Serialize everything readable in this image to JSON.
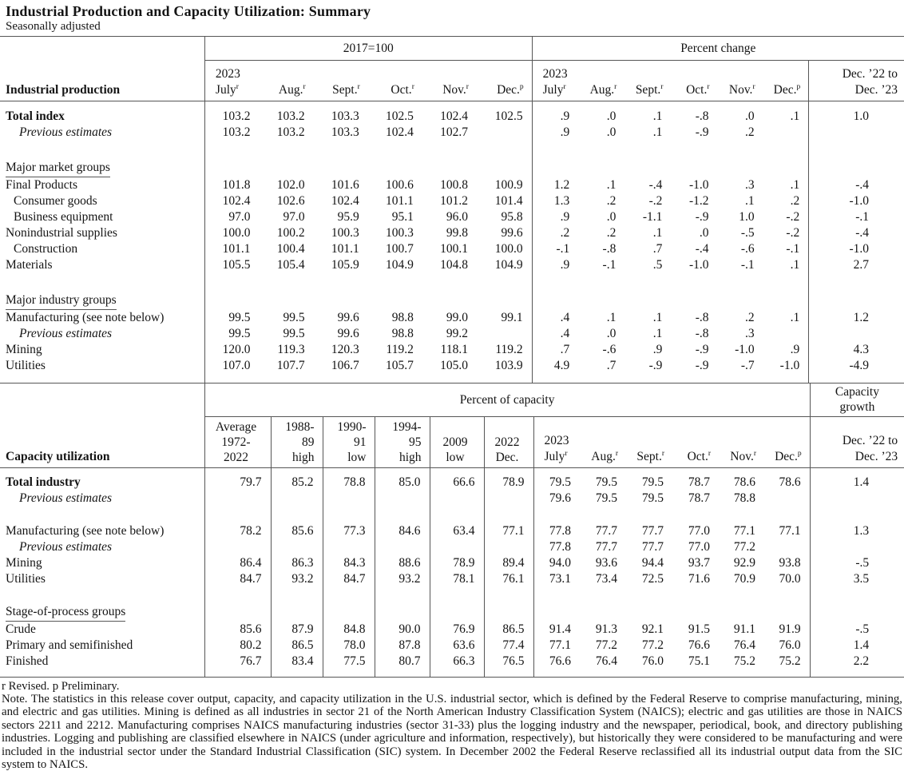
{
  "page": {
    "title": "Industrial Production and Capacity Utilization: Summary",
    "subtitle": "Seasonally adjusted"
  },
  "common": {
    "year_label": "2023",
    "months": [
      {
        "text": "July",
        "sup": "r"
      },
      {
        "text": "Aug.",
        "sup": "r"
      },
      {
        "text": "Sept.",
        "sup": "r"
      },
      {
        "text": "Oct.",
        "sup": "r"
      },
      {
        "text": "Nov.",
        "sup": "r"
      },
      {
        "text": "Dec.",
        "sup": "p"
      }
    ],
    "change_line1": "Dec. ’22 to",
    "change_line2": "Dec. ’23"
  },
  "table1": {
    "row_header": "Industrial production",
    "group1_header": "2017=100",
    "group2_header": "Percent change",
    "rows": [
      {
        "spacer": 9
      },
      {
        "label": "Total index",
        "style": "b",
        "cells": [
          "103.2",
          "103.2",
          "103.3",
          "102.5",
          "102.4",
          "102.5",
          ".9",
          ".0",
          ".1",
          "-.8",
          ".0",
          ".1",
          "1.0"
        ]
      },
      {
        "label": "Previous estimates",
        "style": "prev",
        "cells": [
          "103.2",
          "103.2",
          "103.3",
          "102.4",
          "102.7",
          "",
          ".9",
          ".0",
          ".1",
          "-.9",
          ".2",
          "",
          ""
        ]
      },
      {
        "spacer": 24
      },
      {
        "label": "Major market groups",
        "style": "group",
        "cells": []
      },
      {
        "label": "Final Products",
        "style": "",
        "cells": [
          "101.8",
          "102.0",
          "101.6",
          "100.6",
          "100.8",
          "100.9",
          "1.2",
          ".1",
          "-.4",
          "-1.0",
          ".3",
          ".1",
          "-.4"
        ]
      },
      {
        "label": "Consumer goods",
        "style": "ind",
        "cells": [
          "102.4",
          "102.6",
          "102.4",
          "101.1",
          "101.2",
          "101.4",
          "1.3",
          ".2",
          "-.2",
          "-1.2",
          ".1",
          ".2",
          "-1.0"
        ]
      },
      {
        "label": "Business equipment",
        "style": "ind",
        "cells": [
          "97.0",
          "97.0",
          "95.9",
          "95.1",
          "96.0",
          "95.8",
          ".9",
          ".0",
          "-1.1",
          "-.9",
          "1.0",
          "-.2",
          "-.1"
        ]
      },
      {
        "label": "Nonindustrial supplies",
        "style": "",
        "cells": [
          "100.0",
          "100.2",
          "100.3",
          "100.3",
          "99.8",
          "99.6",
          ".2",
          ".2",
          ".1",
          ".0",
          "-.5",
          "-.2",
          "-.4"
        ]
      },
      {
        "label": "Construction",
        "style": "ind",
        "cells": [
          "101.1",
          "100.4",
          "101.1",
          "100.7",
          "100.1",
          "100.0",
          "-.1",
          "-.8",
          ".7",
          "-.4",
          "-.6",
          "-.1",
          "-1.0"
        ]
      },
      {
        "label": "Materials",
        "style": "",
        "cells": [
          "105.5",
          "105.4",
          "105.9",
          "104.9",
          "104.8",
          "104.9",
          ".9",
          "-.1",
          ".5",
          "-1.0",
          "-.1",
          ".1",
          "2.7"
        ]
      },
      {
        "spacer": 24
      },
      {
        "label": "Major industry groups",
        "style": "group",
        "cells": []
      },
      {
        "label": "Manufacturing (see note below)",
        "style": "",
        "cells": [
          "99.5",
          "99.5",
          "99.6",
          "98.8",
          "99.0",
          "99.1",
          ".4",
          ".1",
          ".1",
          "-.8",
          ".2",
          ".1",
          "1.2"
        ]
      },
      {
        "label": "Previous estimates",
        "style": "prev",
        "cells": [
          "99.5",
          "99.5",
          "99.6",
          "98.8",
          "99.2",
          "",
          ".4",
          ".0",
          ".1",
          "-.8",
          ".3",
          "",
          ""
        ]
      },
      {
        "label": "Mining",
        "style": "",
        "cells": [
          "120.0",
          "119.3",
          "120.3",
          "119.2",
          "118.1",
          "119.2",
          ".7",
          "-.6",
          ".9",
          "-.9",
          "-1.0",
          ".9",
          "4.3"
        ]
      },
      {
        "label": "Utilities",
        "style": "",
        "cells": [
          "107.0",
          "107.7",
          "106.7",
          "105.7",
          "105.0",
          "103.9",
          "4.9",
          ".7",
          "-.9",
          "-.9",
          "-.7",
          "-1.0",
          "-4.9"
        ]
      },
      {
        "spacer": 12
      }
    ]
  },
  "table2": {
    "row_header": "Capacity utilization",
    "group_header": "Percent of capacity",
    "growth_line1": "Capacity",
    "growth_line2": "growth",
    "hist_cols": [
      [
        "Average",
        "1972-",
        "2022"
      ],
      [
        "1988-",
        "89",
        "high"
      ],
      [
        "1990-",
        "91",
        "low"
      ],
      [
        "1994-",
        "95",
        "high"
      ],
      [
        "2009",
        "low"
      ],
      [
        "2022",
        "Dec."
      ]
    ],
    "rows": [
      {
        "spacer": 9
      },
      {
        "label": "Total industry",
        "style": "b",
        "cells": [
          "79.7",
          "85.2",
          "78.8",
          "85.0",
          "66.6",
          "78.9",
          "79.5",
          "79.5",
          "79.5",
          "78.7",
          "78.6",
          "78.6",
          "1.4"
        ]
      },
      {
        "label": "Previous estimates",
        "style": "prev",
        "cells": [
          "",
          "",
          "",
          "",
          "",
          "",
          "79.6",
          "79.5",
          "79.5",
          "78.7",
          "78.8",
          "",
          ""
        ]
      },
      {
        "spacer": 21
      },
      {
        "label": "Manufacturing (see note below)",
        "style": "",
        "cells": [
          "78.2",
          "85.6",
          "77.3",
          "84.6",
          "63.4",
          "77.1",
          "77.8",
          "77.7",
          "77.7",
          "77.0",
          "77.1",
          "77.1",
          "1.3"
        ]
      },
      {
        "label": "Previous estimates",
        "style": "prev",
        "cells": [
          "",
          "",
          "",
          "",
          "",
          "",
          "77.8",
          "77.7",
          "77.7",
          "77.0",
          "77.2",
          "",
          ""
        ]
      },
      {
        "label": "Mining",
        "style": "",
        "cells": [
          "86.4",
          "86.3",
          "84.3",
          "88.6",
          "78.9",
          "89.4",
          "94.0",
          "93.6",
          "94.4",
          "93.7",
          "92.9",
          "93.8",
          "-.5"
        ]
      },
      {
        "label": "Utilities",
        "style": "",
        "cells": [
          "84.7",
          "93.2",
          "84.7",
          "93.2",
          "78.1",
          "76.1",
          "73.1",
          "73.4",
          "72.5",
          "71.6",
          "70.9",
          "70.0",
          "3.5"
        ]
      },
      {
        "spacer": 21
      },
      {
        "label": "Stage-of-process groups",
        "style": "group",
        "cells": []
      },
      {
        "label": "Crude",
        "style": "",
        "cells": [
          "85.6",
          "87.9",
          "84.8",
          "90.0",
          "76.9",
          "86.5",
          "91.4",
          "91.3",
          "92.1",
          "91.5",
          "91.1",
          "91.9",
          "-.5"
        ]
      },
      {
        "label": "Primary and semifinished",
        "style": "",
        "cells": [
          "80.2",
          "86.5",
          "78.0",
          "87.8",
          "63.6",
          "77.4",
          "77.1",
          "77.2",
          "77.2",
          "76.6",
          "76.4",
          "76.0",
          "1.4"
        ]
      },
      {
        "label": "Finished",
        "style": "",
        "cells": [
          "76.7",
          "83.4",
          "77.5",
          "80.7",
          "66.3",
          "76.5",
          "76.6",
          "76.4",
          "76.0",
          "75.1",
          "75.2",
          "75.2",
          "2.2"
        ]
      },
      {
        "spacer": 9
      }
    ]
  },
  "footnotes": {
    "revised": "r Revised. p Preliminary.",
    "note": "Note.  The statistics in this release cover output, capacity, and capacity utilization in the U.S. industrial sector, which is defined by the Federal Reserve to comprise manufacturing, mining, and electric and gas utilities.  Mining is defined as all industries in sector 21 of the North American Industry Classification System (NAICS); electric and gas utilities are those in NAICS sectors 2211 and 2212. Manufacturing comprises NAICS manufacturing industries (sector 31-33) plus the logging industry and the newspaper, periodical, book, and directory publishing industries. Logging and publishing are classified elsewhere in NAICS (under agriculture and information, respectively), but historically they were considered to be manufacturing and were included in the industrial sector under the Standard Industrial Classification (SIC) system. In December 2002 the Federal Reserve reclassified all its industrial output data from the SIC system to NAICS."
  }
}
